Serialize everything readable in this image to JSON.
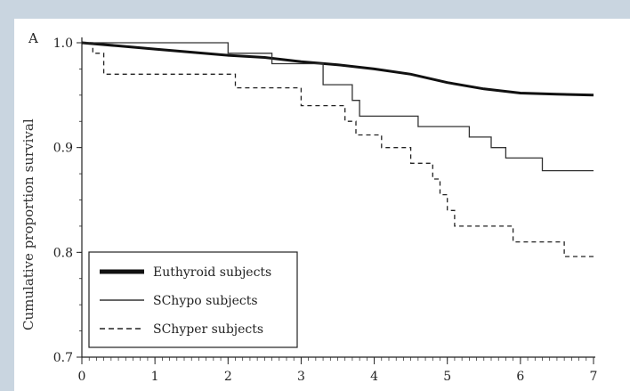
{
  "panel_label": "A",
  "chart_data": {
    "type": "line",
    "title": "",
    "xlabel": "",
    "ylabel": "Cumulative proportion survival",
    "xlim": [
      0,
      7
    ],
    "ylim": [
      0.7,
      1.0
    ],
    "x_ticks": [
      "0",
      "1",
      "2",
      "3",
      "4",
      "5",
      "6",
      "7"
    ],
    "y_ticks": [
      "0.7",
      "0.8",
      "0.9",
      "1.0"
    ],
    "grid": false,
    "legend_position": "bottom-left",
    "series": [
      {
        "name": "Euthyroid subjects",
        "style": "thick-solid",
        "color": "#111111",
        "points": [
          [
            0,
            1.0
          ],
          [
            0.5,
            0.997
          ],
          [
            1,
            0.994
          ],
          [
            1.5,
            0.991
          ],
          [
            2,
            0.988
          ],
          [
            2.5,
            0.986
          ],
          [
            3,
            0.982
          ],
          [
            3.5,
            0.979
          ],
          [
            4,
            0.975
          ],
          [
            4.5,
            0.97
          ],
          [
            5,
            0.962
          ],
          [
            5.5,
            0.956
          ],
          [
            6,
            0.952
          ],
          [
            6.5,
            0.951
          ],
          [
            7,
            0.95
          ]
        ]
      },
      {
        "name": "SChypo subjects",
        "style": "thin-solid",
        "color": "#333333",
        "points": [
          [
            0,
            1.0
          ],
          [
            2.0,
            1.0
          ],
          [
            2.0,
            0.99
          ],
          [
            2.6,
            0.99
          ],
          [
            2.6,
            0.98
          ],
          [
            3.3,
            0.98
          ],
          [
            3.3,
            0.96
          ],
          [
            3.7,
            0.96
          ],
          [
            3.7,
            0.945
          ],
          [
            3.8,
            0.945
          ],
          [
            3.8,
            0.93
          ],
          [
            4.6,
            0.93
          ],
          [
            4.6,
            0.92
          ],
          [
            5.3,
            0.92
          ],
          [
            5.3,
            0.91
          ],
          [
            5.6,
            0.91
          ],
          [
            5.6,
            0.9
          ],
          [
            5.8,
            0.9
          ],
          [
            5.8,
            0.89
          ],
          [
            6.3,
            0.89
          ],
          [
            6.3,
            0.878
          ],
          [
            7,
            0.878
          ]
        ]
      },
      {
        "name": "SChyper subjects",
        "style": "dashed",
        "color": "#222222",
        "points": [
          [
            0,
            1.0
          ],
          [
            0.15,
            1.0
          ],
          [
            0.15,
            0.99
          ],
          [
            0.3,
            0.99
          ],
          [
            0.3,
            0.97
          ],
          [
            2.1,
            0.97
          ],
          [
            2.1,
            0.957
          ],
          [
            3.0,
            0.957
          ],
          [
            3.0,
            0.94
          ],
          [
            3.6,
            0.94
          ],
          [
            3.6,
            0.925
          ],
          [
            3.75,
            0.925
          ],
          [
            3.75,
            0.912
          ],
          [
            4.1,
            0.912
          ],
          [
            4.1,
            0.9
          ],
          [
            4.5,
            0.9
          ],
          [
            4.5,
            0.885
          ],
          [
            4.8,
            0.885
          ],
          [
            4.8,
            0.87
          ],
          [
            4.9,
            0.87
          ],
          [
            4.9,
            0.855
          ],
          [
            5.0,
            0.855
          ],
          [
            5.0,
            0.84
          ],
          [
            5.1,
            0.84
          ],
          [
            5.1,
            0.825
          ],
          [
            5.9,
            0.825
          ],
          [
            5.9,
            0.81
          ],
          [
            6.6,
            0.81
          ],
          [
            6.6,
            0.796
          ],
          [
            7,
            0.796
          ]
        ]
      }
    ]
  }
}
